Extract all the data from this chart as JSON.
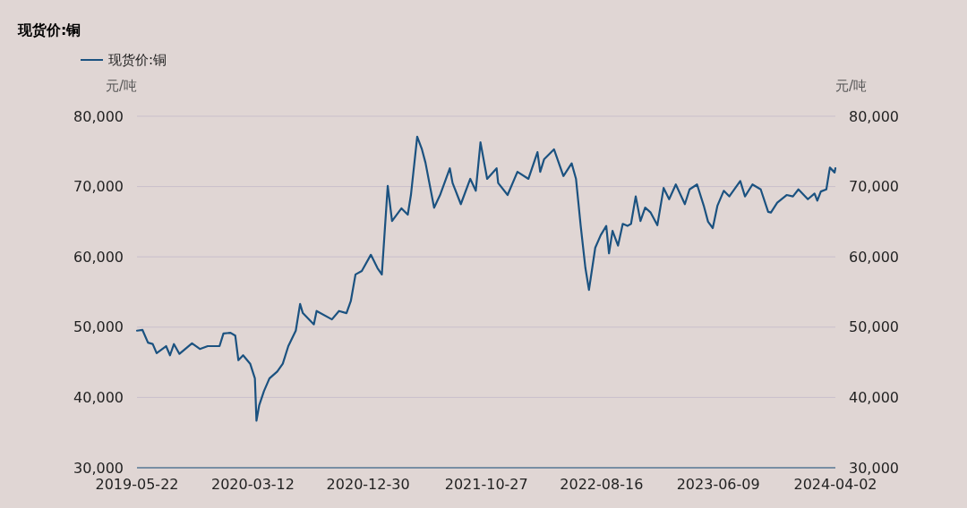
{
  "chart_data": {
    "type": "line",
    "title": "现货价:铜",
    "ylabel": "元/吨",
    "y2label": "元/吨",
    "legend": "top left",
    "grid": "y",
    "marker": "none",
    "line_style": "solid",
    "xlim": [
      "2019-05-22",
      "2024-04-02"
    ],
    "xticks": [
      "2019-05-22",
      "2020-03-12",
      "2020-12-30",
      "2021-10-27",
      "2022-08-16",
      "2023-06-09",
      "2024-04-02"
    ],
    "ylim": [
      30000,
      80000
    ],
    "yticks": [
      {
        "value": 30000,
        "label": "30,000"
      },
      {
        "value": 40000,
        "label": "40,000"
      },
      {
        "value": 50000,
        "label": "50,000"
      },
      {
        "value": 60000,
        "label": "60,000"
      },
      {
        "value": 70000,
        "label": "70,000"
      },
      {
        "value": 80000,
        "label": "80,000"
      }
    ],
    "y2lim": [
      30000,
      80000
    ],
    "y2ticks": [
      {
        "value": 30000,
        "label": "30,000"
      },
      {
        "value": 40000,
        "label": "40,000"
      },
      {
        "value": 50000,
        "label": "50,000"
      },
      {
        "value": 60000,
        "label": "60,000"
      },
      {
        "value": 70000,
        "label": "70,000"
      },
      {
        "value": 80000,
        "label": "80,000"
      }
    ],
    "x": [
      "2019-05-22",
      "2019-06-05",
      "2019-06-19",
      "2019-07-01",
      "2019-07-11",
      "2019-08-04",
      "2019-08-14",
      "2019-08-24",
      "2019-09-07",
      "2019-10-09",
      "2019-10-29",
      "2019-11-18",
      "2019-12-18",
      "2019-12-28",
      "2020-01-15",
      "2020-01-27",
      "2020-02-04",
      "2020-02-16",
      "2020-03-05",
      "2020-03-17",
      "2020-03-21",
      "2020-03-28",
      "2020-04-09",
      "2020-04-23",
      "2020-05-13",
      "2020-05-27",
      "2020-06-10",
      "2020-06-29",
      "2020-07-10",
      "2020-07-17",
      "2020-08-14",
      "2020-08-21",
      "2020-09-29",
      "2020-10-17",
      "2020-11-05",
      "2020-11-16",
      "2020-11-28",
      "2020-12-14",
      "2021-01-06",
      "2021-01-23",
      "2021-02-03",
      "2021-02-18",
      "2021-03-01",
      "2021-03-25",
      "2021-04-10",
      "2021-04-18",
      "2021-05-04",
      "2021-05-16",
      "2021-05-25",
      "2021-06-16",
      "2021-07-02",
      "2021-07-26",
      "2021-08-02",
      "2021-08-23",
      "2021-09-16",
      "2021-09-30",
      "2021-10-12",
      "2021-10-29",
      "2021-11-22",
      "2021-11-26",
      "2021-12-20",
      "2022-01-14",
      "2022-02-11",
      "2022-03-06",
      "2022-03-13",
      "2022-03-23",
      "2022-04-17",
      "2022-05-11",
      "2022-06-01",
      "2022-06-12",
      "2022-06-24",
      "2022-07-06",
      "2022-07-15",
      "2022-07-31",
      "2022-08-14",
      "2022-08-28",
      "2022-09-04",
      "2022-09-13",
      "2022-09-27",
      "2022-10-09",
      "2022-10-21",
      "2022-10-30",
      "2022-11-11",
      "2022-11-23",
      "2022-12-05",
      "2022-12-19",
      "2023-01-05",
      "2023-01-21",
      "2023-02-04",
      "2023-02-21",
      "2023-03-16",
      "2023-03-28",
      "2023-04-16",
      "2023-05-03",
      "2023-05-14",
      "2023-05-26",
      "2023-06-07",
      "2023-06-23",
      "2023-07-07",
      "2023-08-04",
      "2023-08-16",
      "2023-09-04",
      "2023-09-25",
      "2023-10-14",
      "2023-10-21",
      "2023-11-06",
      "2023-11-30",
      "2023-12-16",
      "2023-12-30",
      "2024-01-23",
      "2024-02-09",
      "2024-02-16",
      "2024-02-25",
      "2024-03-10",
      "2024-03-19",
      "2024-03-31",
      "2024-04-02"
    ],
    "series": [
      {
        "name": "现货价:铜",
        "color": "#1b5280",
        "values": [
          49500,
          49600,
          47800,
          47600,
          46300,
          47300,
          46000,
          47600,
          46200,
          47700,
          46900,
          47300,
          47300,
          49100,
          49200,
          48800,
          45300,
          46000,
          44800,
          42700,
          36700,
          38900,
          40900,
          42700,
          43700,
          44800,
          47300,
          49500,
          53300,
          52000,
          50400,
          52300,
          51100,
          52300,
          52000,
          53700,
          57500,
          58000,
          60300,
          58400,
          57500,
          70100,
          65100,
          66900,
          66000,
          68800,
          77100,
          75300,
          73400,
          67000,
          68900,
          72600,
          70500,
          67500,
          71100,
          69400,
          76300,
          71100,
          72600,
          70500,
          68800,
          72100,
          71100,
          74900,
          72100,
          73900,
          75300,
          71500,
          73300,
          71100,
          64400,
          58400,
          55300,
          61300,
          63100,
          64400,
          60500,
          63700,
          61600,
          64700,
          64400,
          64700,
          68600,
          65100,
          67000,
          66300,
          64500,
          69800,
          68200,
          70300,
          67500,
          69600,
          70300,
          67300,
          65000,
          64100,
          67300,
          69400,
          68600,
          70800,
          68600,
          70300,
          69600,
          66400,
          66300,
          67700,
          68800,
          68600,
          69600,
          68200,
          69000,
          68000,
          69300,
          69600,
          72700,
          72000,
          72600
        ]
      }
    ]
  }
}
